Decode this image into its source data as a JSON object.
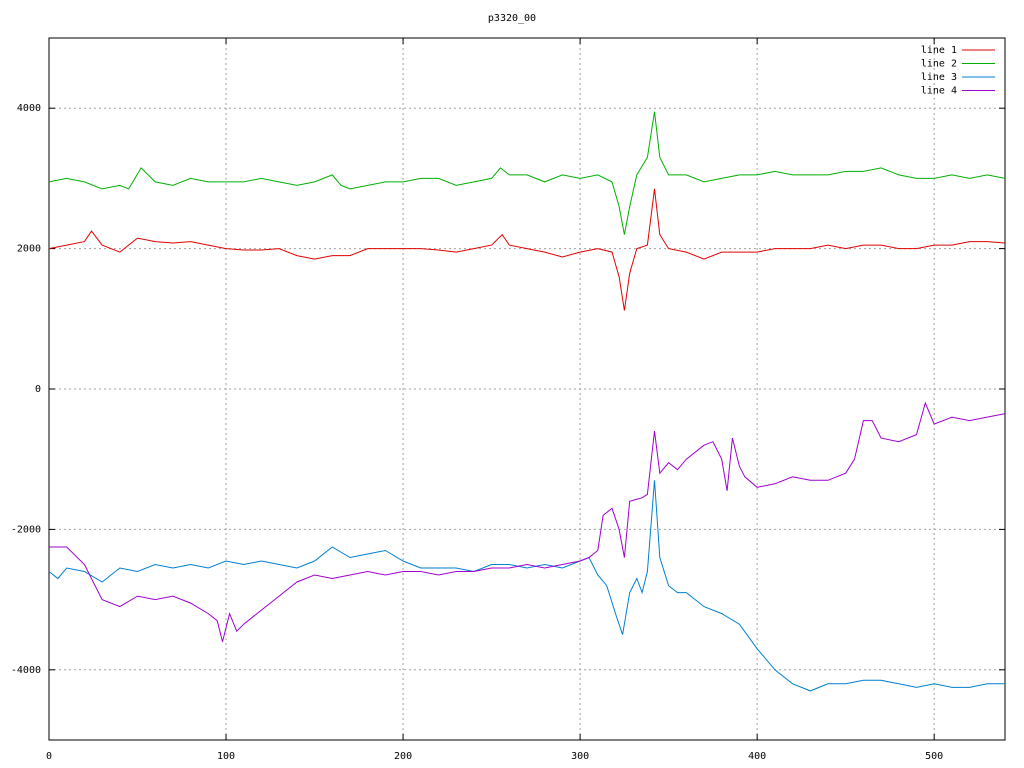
{
  "chart_data": {
    "type": "line",
    "title": "p3320_00",
    "xlim": [
      0,
      540
    ],
    "xticks": [
      0,
      100,
      200,
      300,
      400,
      500
    ],
    "ylim": [
      -5000,
      5000
    ],
    "yticks": [
      -4000,
      -2000,
      0,
      2000,
      4000
    ],
    "grid": true,
    "legend": "top-right",
    "series": [
      {
        "name": "line 1",
        "color": "#e00000",
        "x": [
          0,
          10,
          20,
          24,
          30,
          40,
          50,
          60,
          70,
          80,
          90,
          100,
          110,
          120,
          130,
          140,
          150,
          160,
          170,
          180,
          190,
          200,
          210,
          220,
          230,
          240,
          250,
          256,
          260,
          270,
          280,
          290,
          300,
          310,
          318,
          322,
          325,
          328,
          332,
          338,
          342,
          345,
          350,
          360,
          370,
          380,
          390,
          400,
          410,
          420,
          430,
          440,
          450,
          460,
          470,
          480,
          490,
          500,
          510,
          520,
          530,
          540
        ],
        "values": [
          2000,
          2050,
          2100,
          2250,
          2050,
          1950,
          2150,
          2100,
          2080,
          2100,
          2050,
          2000,
          1980,
          1980,
          2000,
          1900,
          1850,
          1900,
          1900,
          2000,
          2000,
          2000,
          2000,
          1980,
          1950,
          2000,
          2050,
          2200,
          2050,
          2000,
          1950,
          1880,
          1950,
          2000,
          1950,
          1600,
          1120,
          1650,
          2000,
          2050,
          2850,
          2200,
          2000,
          1950,
          1850,
          1950,
          1950,
          1950,
          2000,
          2000,
          2000,
          2050,
          2000,
          2050,
          2050,
          2000,
          2000,
          2050,
          2050,
          2100,
          2100,
          2080
        ]
      },
      {
        "name": "line 2",
        "color": "#00b000",
        "x": [
          0,
          10,
          20,
          30,
          40,
          45,
          52,
          60,
          70,
          80,
          90,
          100,
          110,
          120,
          130,
          140,
          150,
          160,
          165,
          170,
          180,
          190,
          200,
          210,
          220,
          230,
          240,
          250,
          255,
          260,
          270,
          280,
          290,
          300,
          310,
          318,
          322,
          325,
          328,
          332,
          338,
          342,
          345,
          350,
          360,
          370,
          380,
          390,
          400,
          410,
          420,
          430,
          440,
          450,
          460,
          470,
          480,
          490,
          500,
          510,
          520,
          530,
          540
        ],
        "values": [
          2950,
          3000,
          2950,
          2850,
          2900,
          2850,
          3150,
          2950,
          2900,
          3000,
          2950,
          2950,
          2950,
          3000,
          2950,
          2900,
          2950,
          3050,
          2900,
          2850,
          2900,
          2950,
          2950,
          3000,
          3000,
          2900,
          2950,
          3000,
          3150,
          3050,
          3050,
          2950,
          3050,
          3000,
          3050,
          2950,
          2600,
          2200,
          2600,
          3050,
          3300,
          3950,
          3300,
          3050,
          3050,
          2950,
          3000,
          3050,
          3050,
          3100,
          3050,
          3050,
          3050,
          3100,
          3100,
          3150,
          3050,
          3000,
          3000,
          3050,
          3000,
          3050,
          3000
        ]
      },
      {
        "name": "line 3",
        "color": "#0080d0",
        "x": [
          0,
          5,
          10,
          20,
          30,
          40,
          50,
          60,
          70,
          80,
          90,
          100,
          110,
          120,
          130,
          140,
          150,
          160,
          170,
          180,
          190,
          200,
          210,
          220,
          230,
          240,
          250,
          260,
          270,
          280,
          290,
          300,
          305,
          310,
          315,
          320,
          324,
          328,
          332,
          335,
          338,
          342,
          345,
          350,
          355,
          360,
          370,
          380,
          390,
          400,
          410,
          420,
          430,
          440,
          450,
          460,
          470,
          480,
          490,
          500,
          510,
          520,
          530,
          540
        ],
        "values": [
          -2600,
          -2700,
          -2550,
          -2600,
          -2750,
          -2550,
          -2600,
          -2500,
          -2550,
          -2500,
          -2550,
          -2450,
          -2500,
          -2450,
          -2500,
          -2550,
          -2450,
          -2250,
          -2400,
          -2350,
          -2300,
          -2450,
          -2550,
          -2550,
          -2550,
          -2600,
          -2500,
          -2500,
          -2550,
          -2500,
          -2550,
          -2450,
          -2400,
          -2650,
          -2800,
          -3200,
          -3500,
          -2900,
          -2700,
          -2900,
          -2600,
          -1300,
          -2400,
          -2800,
          -2900,
          -2900,
          -3100,
          -3200,
          -3350,
          -3700,
          -4000,
          -4200,
          -4300,
          -4200,
          -4200,
          -4150,
          -4150,
          -4200,
          -4250,
          -4200,
          -4250,
          -4250,
          -4200,
          -4200
        ]
      },
      {
        "name": "line 4",
        "color": "#a000d0",
        "x": [
          0,
          10,
          20,
          30,
          40,
          50,
          60,
          70,
          80,
          90,
          95,
          98,
          102,
          106,
          110,
          120,
          130,
          140,
          150,
          160,
          170,
          180,
          190,
          200,
          210,
          220,
          230,
          240,
          250,
          260,
          270,
          280,
          290,
          300,
          305,
          310,
          313,
          318,
          322,
          325,
          328,
          335,
          338,
          342,
          345,
          350,
          355,
          360,
          370,
          375,
          380,
          383,
          386,
          390,
          393,
          400,
          410,
          420,
          430,
          440,
          450,
          455,
          460,
          465,
          470,
          480,
          490,
          495,
          500,
          510,
          520,
          530,
          540
        ],
        "values": [
          -2250,
          -2250,
          -2500,
          -3000,
          -3100,
          -2950,
          -3000,
          -2950,
          -3050,
          -3200,
          -3300,
          -3600,
          -3200,
          -3450,
          -3350,
          -3150,
          -2950,
          -2750,
          -2650,
          -2700,
          -2650,
          -2600,
          -2650,
          -2600,
          -2600,
          -2650,
          -2600,
          -2600,
          -2550,
          -2550,
          -2500,
          -2550,
          -2500,
          -2450,
          -2400,
          -2300,
          -1800,
          -1700,
          -2000,
          -2400,
          -1600,
          -1550,
          -1500,
          -600,
          -1200,
          -1050,
          -1150,
          -1000,
          -800,
          -750,
          -1000,
          -1450,
          -700,
          -1100,
          -1250,
          -1400,
          -1350,
          -1250,
          -1300,
          -1300,
          -1200,
          -1000,
          -450,
          -450,
          -700,
          -750,
          -650,
          -200,
          -500,
          -400,
          -450,
          -400,
          -350
        ]
      }
    ]
  }
}
